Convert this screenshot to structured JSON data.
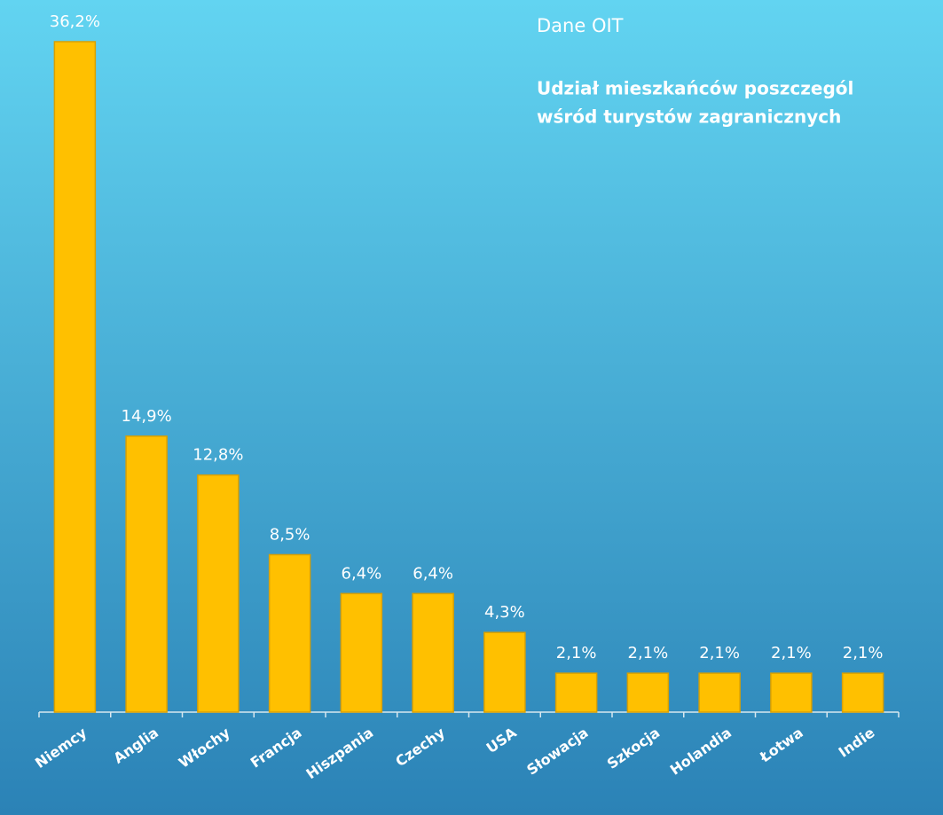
{
  "chart_data": {
    "type": "bar",
    "source": "Dane OIT",
    "title": [
      "Udział mieszkańców poszczegól",
      "wśród turystów zagranicznych"
    ],
    "categories": [
      "Niemcy",
      "Anglia",
      "Włochy",
      "Francja",
      "Hiszpania",
      "Czechy",
      "USA",
      "Słowacja",
      "Szkocja",
      "Holandia",
      "Łotwa",
      "Indie"
    ],
    "values": [
      36.2,
      14.9,
      12.8,
      8.5,
      6.4,
      6.4,
      4.3,
      2.1,
      2.1,
      2.1,
      2.1,
      2.1
    ],
    "value_labels": [
      "36,2%",
      "14,9%",
      "12,8%",
      "8,5%",
      "6,4%",
      "6,4%",
      "4,3%",
      "2,1%",
      "2,1%",
      "2,1%",
      "2,1%",
      "2,1%"
    ],
    "color": "#ffc000"
  }
}
